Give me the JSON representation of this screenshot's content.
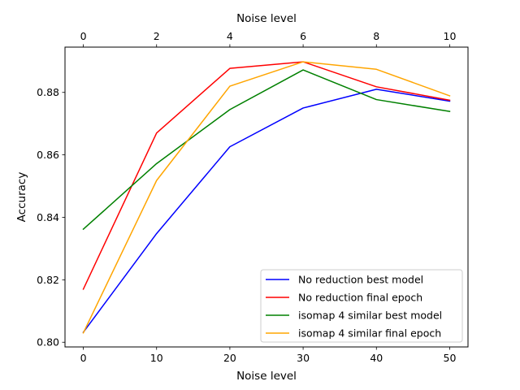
{
  "chart_data": {
    "type": "line",
    "title": "",
    "xlabel": "Noise level",
    "ylabel": "Accuracy",
    "x2label": "Noise level",
    "x": [
      0,
      10,
      20,
      30,
      40,
      50
    ],
    "xticks": [
      0,
      10,
      20,
      30,
      40,
      50
    ],
    "xlim": [
      -2.5,
      52.5
    ],
    "x2": [
      0,
      2,
      4,
      6,
      8,
      10
    ],
    "x2ticks": [
      0,
      2,
      4,
      6,
      8,
      10
    ],
    "x2lim": [
      -0.5,
      10.5
    ],
    "ylim": [
      0.7985,
      0.8945
    ],
    "yticks": [
      0.8,
      0.82,
      0.84,
      0.86,
      0.88
    ],
    "ytick_labels": [
      "0.80",
      "0.82",
      "0.84",
      "0.86",
      "0.88"
    ],
    "grid": false,
    "legend_position": "lower-right",
    "series": [
      {
        "name": "No reduction best model",
        "color": "#0000ff",
        "values": [
          0.8032,
          0.8348,
          0.8626,
          0.875,
          0.881,
          0.8772
        ]
      },
      {
        "name": "No reduction final epoch",
        "color": "#ff0000",
        "values": [
          0.817,
          0.867,
          0.8877,
          0.8898,
          0.8818,
          0.8775
        ]
      },
      {
        "name": "isomap 4 similar best model",
        "color": "#008000",
        "values": [
          0.8362,
          0.8572,
          0.8745,
          0.8872,
          0.8777,
          0.8739
        ]
      },
      {
        "name": "isomap 4 similar final epoch",
        "color": "#ffa500",
        "values": [
          0.803,
          0.8518,
          0.882,
          0.8898,
          0.8874,
          0.8789
        ]
      }
    ]
  }
}
